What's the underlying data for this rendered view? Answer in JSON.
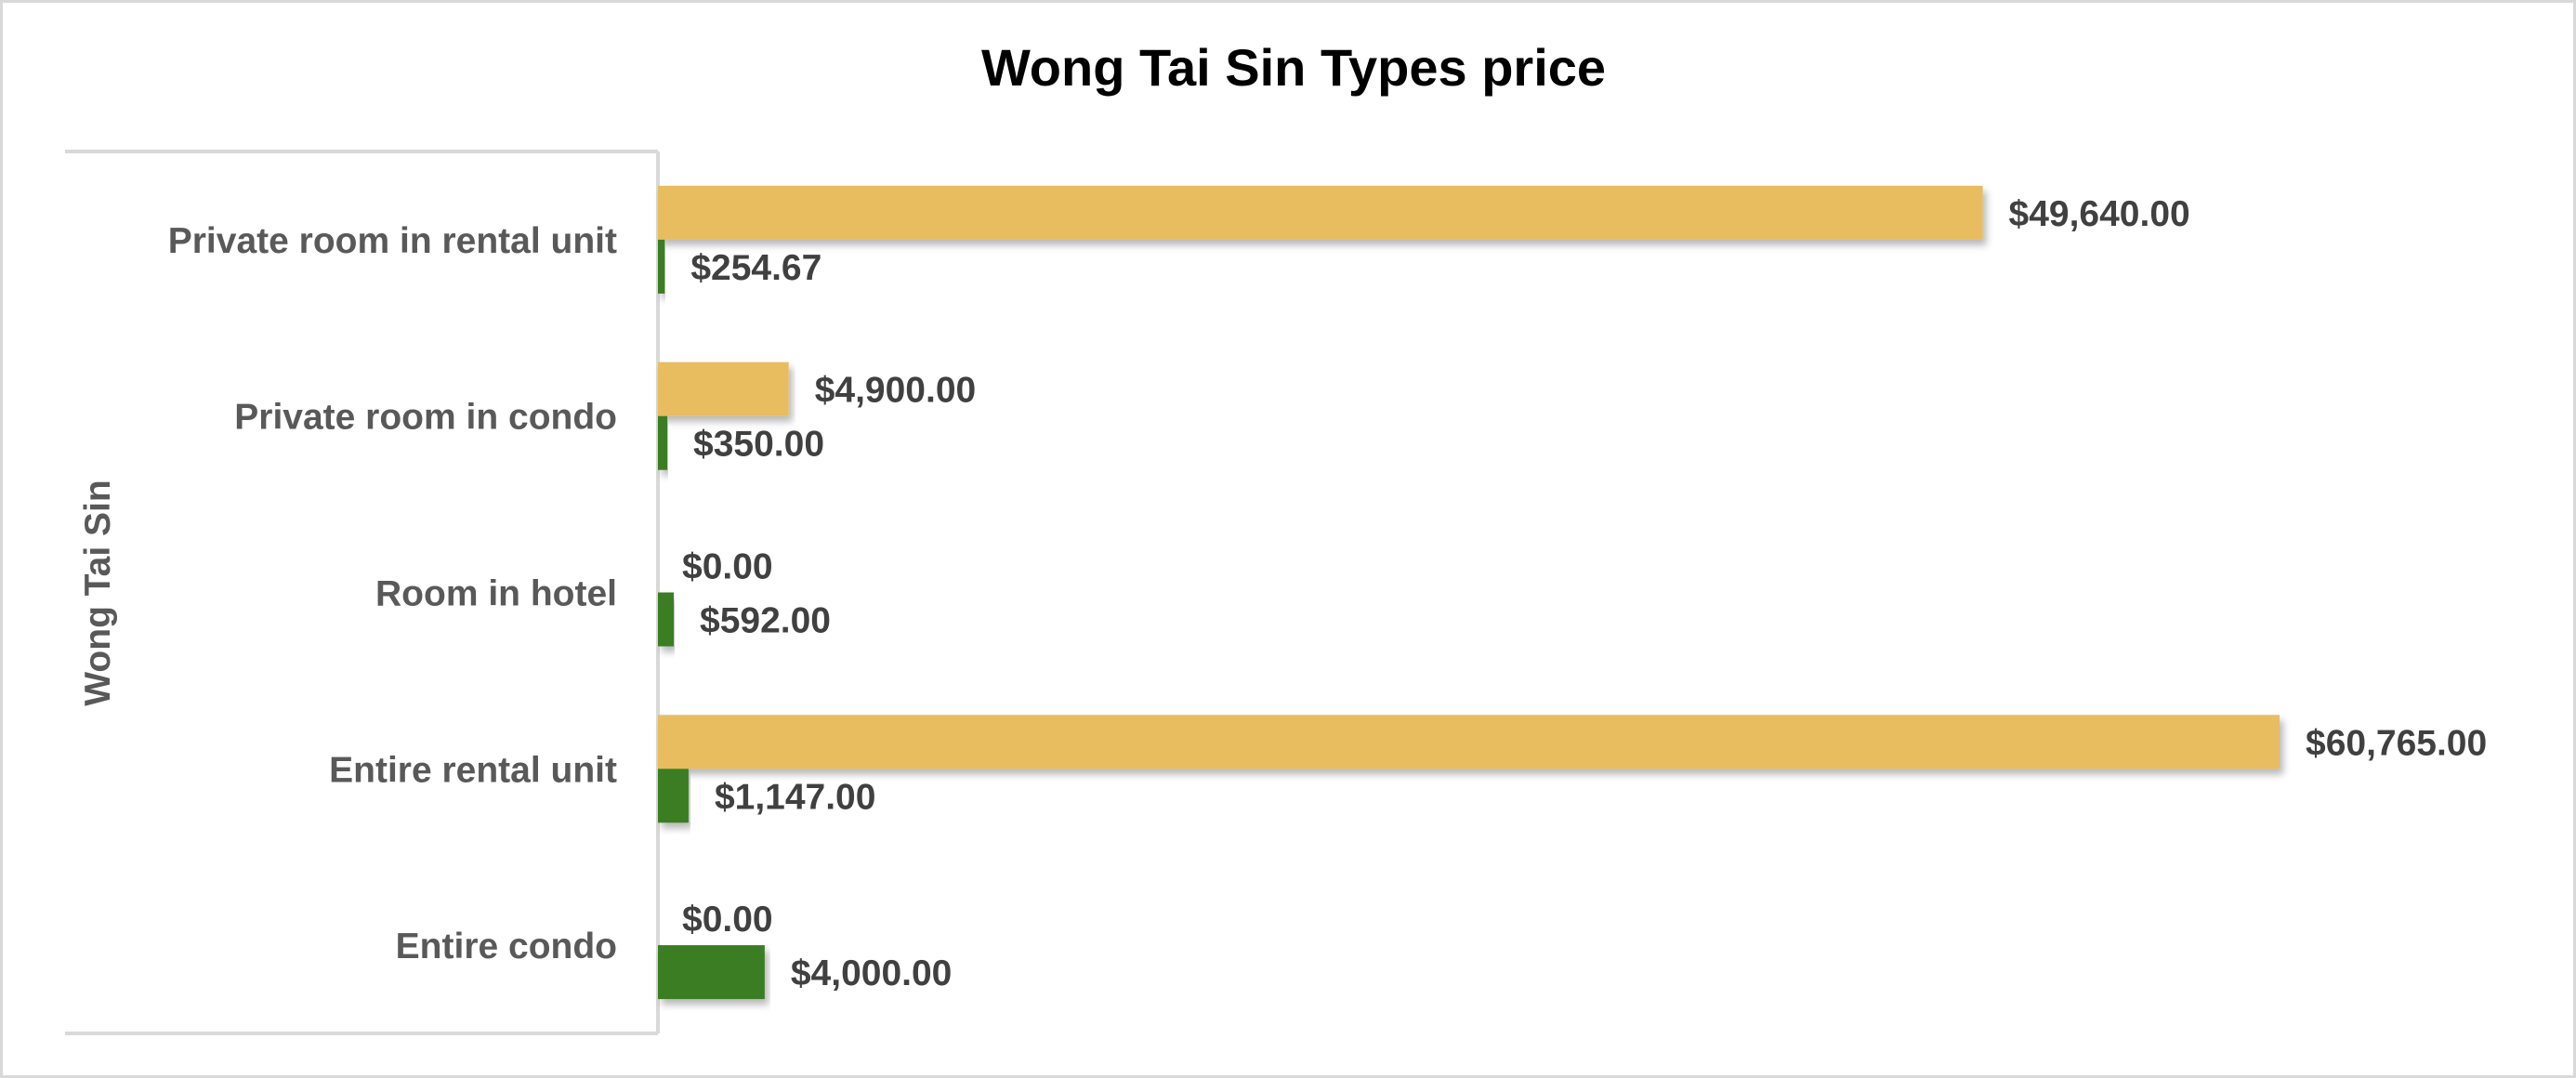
{
  "chart_data": {
    "type": "bar",
    "orientation": "horizontal",
    "title": "Wong Tai Sin Types price",
    "group_label": "Wong Tai Sin",
    "categories": [
      "Private room in rental unit",
      "Private room in condo",
      "Room in hotel",
      "Entire rental unit",
      "Entire condo"
    ],
    "series": [
      {
        "color": "#E8BD5E",
        "values": [
          49640,
          4900,
          0,
          60765,
          0
        ],
        "labels": [
          "$49,640.00",
          "$4,900.00",
          "$0.00",
          "$60,765.00",
          "$0.00"
        ]
      },
      {
        "color": "#3A7D23",
        "values": [
          254.67,
          350,
          592,
          1147,
          4000
        ],
        "labels": [
          "$254.67",
          "$350.00",
          "$592.00",
          "$1,147.00",
          "$4,000.00"
        ]
      }
    ],
    "xlim": [
      0,
      60765
    ],
    "grid": false,
    "legend": "none"
  }
}
